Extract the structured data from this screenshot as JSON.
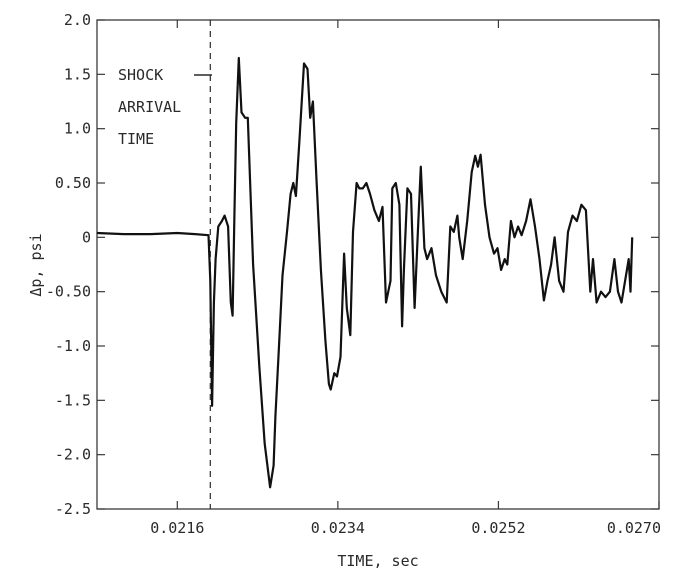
{
  "chart_data": {
    "type": "line",
    "title": "",
    "xlabel": "TIME, sec",
    "ylabel": "Δp, psi",
    "xlim": [
      0.0207,
      0.027
    ],
    "ylim": [
      -2.5,
      2.0
    ],
    "grid": false,
    "x_ticks": [
      0.0216,
      0.0234,
      0.0252,
      0.027
    ],
    "x_tick_labels": [
      "0.0216",
      "0.0234",
      "0.0252",
      "0.0270"
    ],
    "y_ticks": [
      2.0,
      1.5,
      1.0,
      0.5,
      0,
      -0.5,
      -1.0,
      -1.5,
      -2.0,
      -2.5
    ],
    "y_tick_labels": [
      "2.0",
      "1.5",
      "1.0",
      "0.50",
      "0",
      "-0.50",
      "-1.0",
      "-1.5",
      "-2.0",
      "-2.5"
    ],
    "annotation": {
      "lines": [
        "SHOCK",
        "ARRIVAL",
        "TIME"
      ],
      "x": 0.02197
    },
    "series": [
      {
        "x": [
          0.0207,
          0.021,
          0.0213,
          0.0216,
          0.0218,
          0.02195,
          0.02197,
          0.02199,
          0.02201,
          0.02203,
          0.02206,
          0.0221,
          0.02213,
          0.02217,
          0.0222,
          0.02222,
          0.02224,
          0.02226,
          0.02229,
          0.02232,
          0.02236,
          0.02239,
          0.02245,
          0.02252,
          0.02258,
          0.02264,
          0.02268,
          0.0227,
          0.02274,
          0.02278,
          0.02283,
          0.02287,
          0.0229,
          0.02293,
          0.02297,
          0.02302,
          0.02306,
          0.02309,
          0.02312,
          0.02316,
          0.02321,
          0.02326,
          0.0233,
          0.02332,
          0.02336,
          0.02339,
          0.02343,
          0.02347,
          0.0235,
          0.02354,
          0.02357,
          0.02361,
          0.02364,
          0.02368,
          0.02372,
          0.02376,
          0.02381,
          0.02386,
          0.0239,
          0.02394,
          0.02399,
          0.02401,
          0.02405,
          0.02409,
          0.02412,
          0.02414,
          0.02418,
          0.02422,
          0.02426,
          0.0243,
          0.02433,
          0.02437,
          0.0244,
          0.02445,
          0.0245,
          0.02456,
          0.02462,
          0.02466,
          0.0247,
          0.02474,
          0.02476,
          0.0248,
          0.02485,
          0.0249,
          0.02494,
          0.02497,
          0.025,
          0.02505,
          0.0251,
          0.02515,
          0.02519,
          0.02523,
          0.02527,
          0.0253,
          0.02534,
          0.02538,
          0.02542,
          0.02546,
          0.02551,
          0.02556,
          0.02561,
          0.02566,
          0.02571,
          0.02575,
          0.02579,
          0.02583,
          0.02588,
          0.02593,
          0.02598,
          0.02603,
          0.02608,
          0.02613,
          0.02618,
          0.02623,
          0.02626,
          0.0263,
          0.02635,
          0.0264,
          0.02645,
          0.0265,
          0.02654,
          0.02658,
          0.02662,
          0.02666,
          0.02668,
          0.0267
        ],
        "y": [
          0.04,
          0.03,
          0.03,
          0.04,
          0.03,
          0.02,
          -0.4,
          -1.55,
          -0.6,
          -0.2,
          0.1,
          0.15,
          0.2,
          0.1,
          -0.6,
          -0.72,
          0.2,
          1.05,
          1.65,
          1.15,
          1.1,
          1.1,
          -0.25,
          -1.2,
          -1.9,
          -2.3,
          -2.1,
          -1.65,
          -1.0,
          -0.35,
          0.05,
          0.4,
          0.5,
          0.38,
          0.9,
          1.6,
          1.55,
          1.1,
          1.25,
          0.55,
          -0.3,
          -0.95,
          -1.35,
          -1.4,
          -1.25,
          -1.28,
          -1.1,
          -0.15,
          -0.65,
          -0.9,
          0.05,
          0.5,
          0.45,
          0.45,
          0.5,
          0.4,
          0.25,
          0.15,
          0.28,
          -0.6,
          -0.4,
          0.45,
          0.5,
          0.3,
          -0.82,
          -0.3,
          0.45,
          0.4,
          -0.65,
          0.1,
          0.65,
          -0.1,
          -0.2,
          -0.1,
          -0.35,
          -0.5,
          -0.6,
          0.1,
          0.05,
          0.2,
          0.0,
          -0.2,
          0.15,
          0.6,
          0.75,
          0.65,
          0.76,
          0.3,
          0.0,
          -0.15,
          -0.1,
          -0.3,
          -0.2,
          -0.25,
          0.15,
          0.0,
          0.1,
          0.02,
          0.15,
          0.35,
          0.1,
          -0.2,
          -0.58,
          -0.4,
          -0.25,
          0.0,
          -0.4,
          -0.5,
          0.05,
          0.2,
          0.15,
          0.3,
          0.25,
          -0.5,
          -0.2,
          -0.6,
          -0.5,
          -0.55,
          -0.5,
          -0.2,
          -0.5,
          -0.6,
          -0.4,
          -0.2,
          -0.5,
          0.0
        ]
      }
    ]
  }
}
